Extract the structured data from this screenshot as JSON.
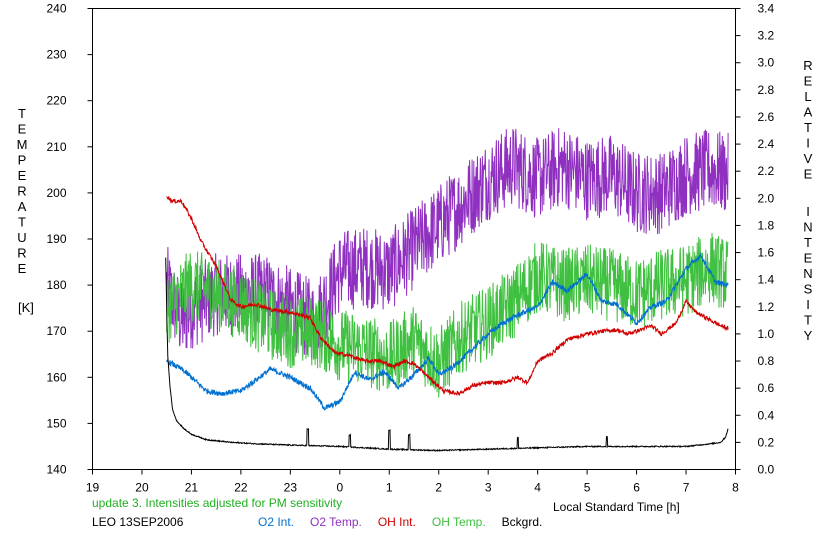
{
  "chart_data": {
    "type": "line",
    "x_axis": {
      "label": "Local Standard Time [h]",
      "ticks": [
        "19",
        "20",
        "21",
        "22",
        "23",
        "0",
        "1",
        "2",
        "3",
        "4",
        "5",
        "6",
        "7",
        "8"
      ],
      "range_hours": [
        19,
        32
      ]
    },
    "y_left": {
      "label_letters": [
        "T",
        "E",
        "M",
        "P",
        "E",
        "R",
        "A",
        "T",
        "U",
        "R",
        "E"
      ],
      "unit": "[K]",
      "ticks": [
        "140",
        "150",
        "160",
        "170",
        "180",
        "190",
        "200",
        "210",
        "220",
        "230",
        "240"
      ],
      "range": [
        140,
        240
      ]
    },
    "y_right": {
      "label_word1": [
        "R",
        "E",
        "L",
        "A",
        "T",
        "I",
        "V",
        "E"
      ],
      "label_word2": [
        "I",
        "N",
        "T",
        "E",
        "N",
        "S",
        "I",
        "T",
        "Y"
      ],
      "ticks": [
        "0.0",
        "0.2",
        "0.4",
        "0.6",
        "0.8",
        "1.0",
        "1.2",
        "1.4",
        "1.6",
        "1.8",
        "2.0",
        "2.2",
        "2.4",
        "2.6",
        "2.8",
        "3.0",
        "3.2",
        "3.4"
      ],
      "range": [
        0,
        3.4
      ]
    },
    "grid": false,
    "series": [
      {
        "name": "O2 Int.",
        "axis": "right",
        "color": "#0070d0",
        "noise": 0.02,
        "points": [
          [
            20.5,
            0.8
          ],
          [
            20.8,
            0.74
          ],
          [
            21.0,
            0.68
          ],
          [
            21.3,
            0.58
          ],
          [
            21.6,
            0.56
          ],
          [
            22.0,
            0.58
          ],
          [
            22.3,
            0.66
          ],
          [
            22.6,
            0.74
          ],
          [
            23.0,
            0.68
          ],
          [
            23.4,
            0.6
          ],
          [
            23.7,
            0.45
          ],
          [
            24.0,
            0.5
          ],
          [
            24.3,
            0.72
          ],
          [
            24.6,
            0.66
          ],
          [
            24.9,
            0.72
          ],
          [
            25.2,
            0.6
          ],
          [
            25.5,
            0.7
          ],
          [
            25.8,
            0.82
          ],
          [
            26.0,
            0.7
          ],
          [
            26.3,
            0.76
          ],
          [
            26.6,
            0.86
          ],
          [
            27.0,
            1.0
          ],
          [
            27.3,
            1.08
          ],
          [
            27.6,
            1.14
          ],
          [
            28.0,
            1.2
          ],
          [
            28.3,
            1.38
          ],
          [
            28.6,
            1.32
          ],
          [
            29.0,
            1.44
          ],
          [
            29.3,
            1.24
          ],
          [
            29.6,
            1.22
          ],
          [
            30.0,
            1.08
          ],
          [
            30.3,
            1.2
          ],
          [
            30.6,
            1.24
          ],
          [
            31.0,
            1.48
          ],
          [
            31.3,
            1.58
          ],
          [
            31.6,
            1.38
          ],
          [
            31.85,
            1.36
          ]
        ]
      },
      {
        "name": "O2 Temp.",
        "axis": "left",
        "color": "#9030c0",
        "noise": 9,
        "points": [
          [
            20.5,
            180
          ],
          [
            20.8,
            172
          ],
          [
            21.0,
            175
          ],
          [
            21.5,
            178
          ],
          [
            22.0,
            178
          ],
          [
            22.5,
            178
          ],
          [
            23.0,
            175
          ],
          [
            23.5,
            172
          ],
          [
            24.0,
            183
          ],
          [
            24.5,
            184
          ],
          [
            25.0,
            183
          ],
          [
            25.5,
            188
          ],
          [
            26.0,
            193
          ],
          [
            26.5,
            198
          ],
          [
            27.0,
            203
          ],
          [
            27.5,
            206
          ],
          [
            28.0,
            203
          ],
          [
            28.5,
            206
          ],
          [
            29.0,
            203
          ],
          [
            29.5,
            204
          ],
          [
            30.0,
            200
          ],
          [
            30.5,
            200
          ],
          [
            31.0,
            204
          ],
          [
            31.5,
            205
          ],
          [
            31.85,
            204
          ]
        ]
      },
      {
        "name": "OH Int.",
        "axis": "right",
        "color": "#d00000",
        "noise": 0.015,
        "points": [
          [
            20.5,
            2.02
          ],
          [
            20.6,
            1.98
          ],
          [
            20.8,
            1.98
          ],
          [
            21.0,
            1.85
          ],
          [
            21.2,
            1.68
          ],
          [
            21.5,
            1.5
          ],
          [
            21.8,
            1.25
          ],
          [
            22.0,
            1.2
          ],
          [
            22.3,
            1.22
          ],
          [
            22.6,
            1.18
          ],
          [
            23.0,
            1.16
          ],
          [
            23.4,
            1.12
          ],
          [
            23.6,
            0.98
          ],
          [
            23.9,
            0.86
          ],
          [
            24.2,
            0.84
          ],
          [
            24.5,
            0.8
          ],
          [
            24.8,
            0.8
          ],
          [
            25.1,
            0.76
          ],
          [
            25.3,
            0.8
          ],
          [
            25.5,
            0.78
          ],
          [
            25.8,
            0.68
          ],
          [
            26.1,
            0.58
          ],
          [
            26.4,
            0.56
          ],
          [
            26.7,
            0.62
          ],
          [
            27.0,
            0.64
          ],
          [
            27.3,
            0.64
          ],
          [
            27.6,
            0.68
          ],
          [
            27.8,
            0.64
          ],
          [
            28.0,
            0.8
          ],
          [
            28.3,
            0.86
          ],
          [
            28.6,
            0.96
          ],
          [
            28.8,
            0.98
          ],
          [
            29.0,
            1.0
          ],
          [
            29.3,
            1.02
          ],
          [
            29.6,
            1.03
          ],
          [
            29.8,
            1.0
          ],
          [
            30.0,
            1.02
          ],
          [
            30.3,
            1.06
          ],
          [
            30.5,
            1.0
          ],
          [
            30.8,
            1.08
          ],
          [
            31.0,
            1.24
          ],
          [
            31.2,
            1.16
          ],
          [
            31.5,
            1.1
          ],
          [
            31.7,
            1.06
          ],
          [
            31.85,
            1.04
          ]
        ]
      },
      {
        "name": "OH Temp.",
        "axis": "left",
        "color": "#40c040",
        "noise": 8,
        "points": [
          [
            20.5,
            175
          ],
          [
            21.0,
            180
          ],
          [
            21.5,
            178
          ],
          [
            22.0,
            176
          ],
          [
            22.5,
            172
          ],
          [
            23.0,
            170
          ],
          [
            23.5,
            170
          ],
          [
            24.0,
            167
          ],
          [
            24.5,
            166
          ],
          [
            25.0,
            164
          ],
          [
            25.5,
            168
          ],
          [
            26.0,
            163
          ],
          [
            26.5,
            169
          ],
          [
            27.0,
            172
          ],
          [
            27.5,
            176
          ],
          [
            28.0,
            182
          ],
          [
            28.5,
            180
          ],
          [
            29.0,
            181
          ],
          [
            29.5,
            180
          ],
          [
            30.0,
            178
          ],
          [
            30.5,
            180
          ],
          [
            31.0,
            181
          ],
          [
            31.5,
            184
          ],
          [
            31.85,
            182
          ]
        ]
      },
      {
        "name": "Bckgrd.",
        "axis": "right",
        "color": "#000000",
        "noise": 0.004,
        "points": [
          [
            20.48,
            1.56
          ],
          [
            20.52,
            0.84
          ],
          [
            20.57,
            0.6
          ],
          [
            20.62,
            0.44
          ],
          [
            20.7,
            0.36
          ],
          [
            20.85,
            0.3
          ],
          [
            21.0,
            0.26
          ],
          [
            21.3,
            0.22
          ],
          [
            21.8,
            0.2
          ],
          [
            22.3,
            0.19
          ],
          [
            23.0,
            0.18
          ],
          [
            24.0,
            0.17
          ],
          [
            25.0,
            0.15
          ],
          [
            26.0,
            0.14
          ],
          [
            27.0,
            0.15
          ],
          [
            28.0,
            0.16
          ],
          [
            29.0,
            0.17
          ],
          [
            30.0,
            0.17
          ],
          [
            31.0,
            0.17
          ],
          [
            31.5,
            0.19
          ],
          [
            31.7,
            0.2
          ],
          [
            31.8,
            0.24
          ],
          [
            31.85,
            0.3
          ]
        ],
        "spikes": [
          [
            23.35,
            0.12
          ],
          [
            24.2,
            0.09
          ],
          [
            25.0,
            0.14
          ],
          [
            25.4,
            0.11
          ],
          [
            27.6,
            0.08
          ],
          [
            29.4,
            0.07
          ]
        ]
      }
    ],
    "legend": {
      "placement": "bottom-left",
      "entries": [
        "O2 Int.",
        "O2 Temp.",
        "OH Int.",
        "OH Temp.",
        "Bckgrd."
      ]
    }
  },
  "footer": {
    "note": "update 3. Intensities adjusted for PM sensitivity",
    "note_color": "#20b020",
    "station": "LEO 13SEP2006"
  }
}
